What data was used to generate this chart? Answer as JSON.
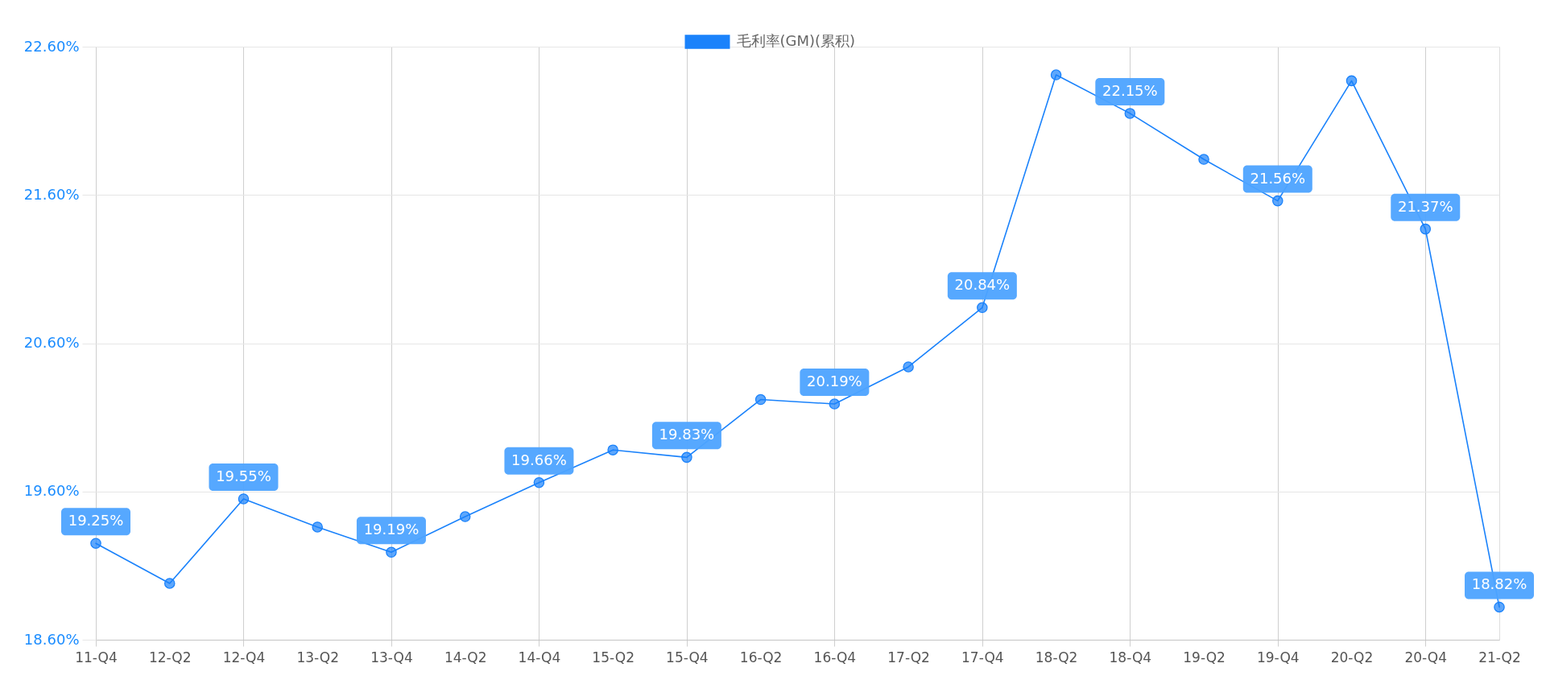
{
  "chart_data": {
    "type": "line",
    "categories": [
      "11-Q4",
      "12-Q2",
      "12-Q4",
      "13-Q2",
      "13-Q4",
      "14-Q2",
      "14-Q4",
      "15-Q2",
      "15-Q4",
      "16-Q2",
      "16-Q4",
      "17-Q2",
      "17-Q4",
      "18-Q2",
      "18-Q4",
      "19-Q2",
      "19-Q4",
      "20-Q2",
      "20-Q4",
      "21-Q2"
    ],
    "series": [
      {
        "name": "毛利率(GM)(累积)",
        "color": "#1a82fb",
        "values": [
          19.25,
          18.98,
          19.55,
          19.36,
          19.19,
          19.43,
          19.66,
          19.88,
          19.83,
          20.22,
          20.19,
          20.44,
          20.84,
          22.41,
          22.15,
          21.84,
          21.56,
          22.37,
          21.37,
          18.82
        ],
        "value_labels": [
          "19.25%",
          null,
          "19.55%",
          null,
          "19.19%",
          null,
          "19.66%",
          null,
          "19.83%",
          null,
          "20.19%",
          null,
          "20.84%",
          null,
          "22.15%",
          null,
          "21.56%",
          null,
          "21.37%",
          "18.82%"
        ]
      }
    ],
    "ylim": [
      18.6,
      22.6
    ],
    "yticks": [
      {
        "value": 18.6,
        "label": "18.60%"
      },
      {
        "value": 19.6,
        "label": "19.60%"
      },
      {
        "value": 20.6,
        "label": "20.60%"
      },
      {
        "value": 21.6,
        "label": "21.60%"
      },
      {
        "value": 22.6,
        "label": "22.60%"
      }
    ],
    "grid": true,
    "legend": "top",
    "marker": "circle",
    "line_style": "solid"
  }
}
